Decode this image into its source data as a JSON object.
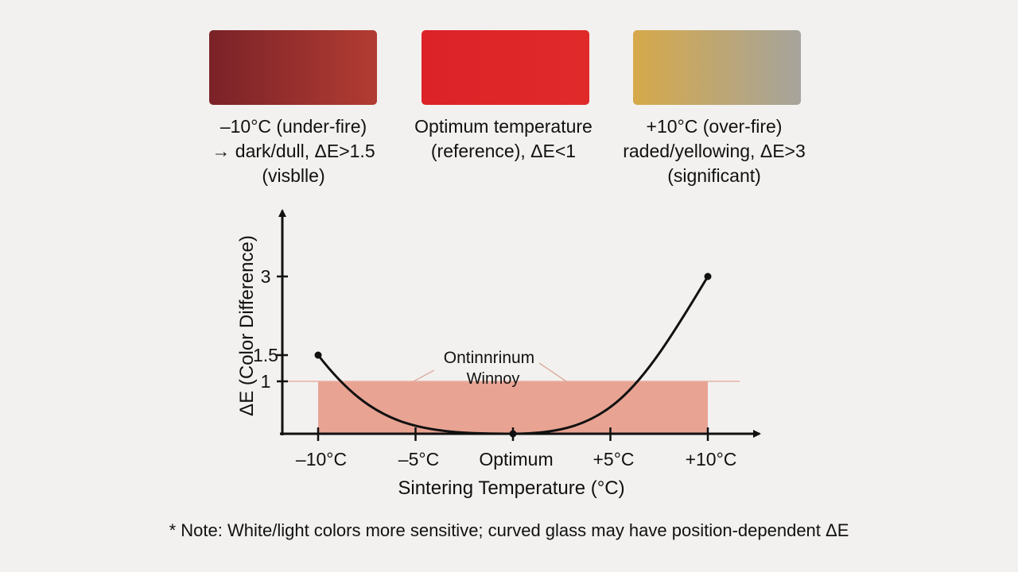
{
  "swatches": [
    {
      "gradient_from": "#7a2228",
      "gradient_to": "#b23c32",
      "caption_lines": [
        "–10°C (under-fire)",
        "→ dark/dull, ΔE>1.5",
        "(visblle)"
      ]
    },
    {
      "gradient_from": "#dc2227",
      "gradient_to": "#e02a2a",
      "caption_lines": [
        "Optimum temperature",
        "(reference), ΔE<1"
      ]
    },
    {
      "gradient_from": "#d6a94a",
      "gradient_to": "#a6a49c",
      "caption_lines": [
        "+10°C (over-fire)",
        "raded/yellowing, ΔE>3",
        "(significant)"
      ]
    }
  ],
  "chart_data": {
    "type": "line",
    "xlabel": "Sintering Temperature (°C)",
    "ylabel": "ΔE (Color Difference)",
    "x_tick_labels": [
      "–10°C",
      "–5°C",
      "Optimum",
      "+5°C",
      "+10°C"
    ],
    "x_values": [
      -10,
      0,
      10
    ],
    "x_range": [
      -10,
      10
    ],
    "y_ticks": [
      {
        "value": 1,
        "label": "1"
      },
      {
        "value": 1.5,
        "label": "1.5"
      },
      {
        "value": 3,
        "label": "3"
      }
    ],
    "y_range": [
      0,
      3.9
    ],
    "series": [
      {
        "points": [
          {
            "x": -10,
            "y": 1.5
          },
          {
            "x": 0,
            "y": 0
          },
          {
            "x": 10,
            "y": 3
          }
        ]
      }
    ],
    "curve_color": "#111111",
    "window": {
      "x_range": [
        -10,
        10
      ],
      "y_max": 1,
      "label_lines": [
        "Ontinnrinum",
        "Winnoy"
      ],
      "fill_color": "#e8a393"
    }
  },
  "note": "* Note: White/light colors more sensitive; curved glass may have position-dependent ΔE"
}
